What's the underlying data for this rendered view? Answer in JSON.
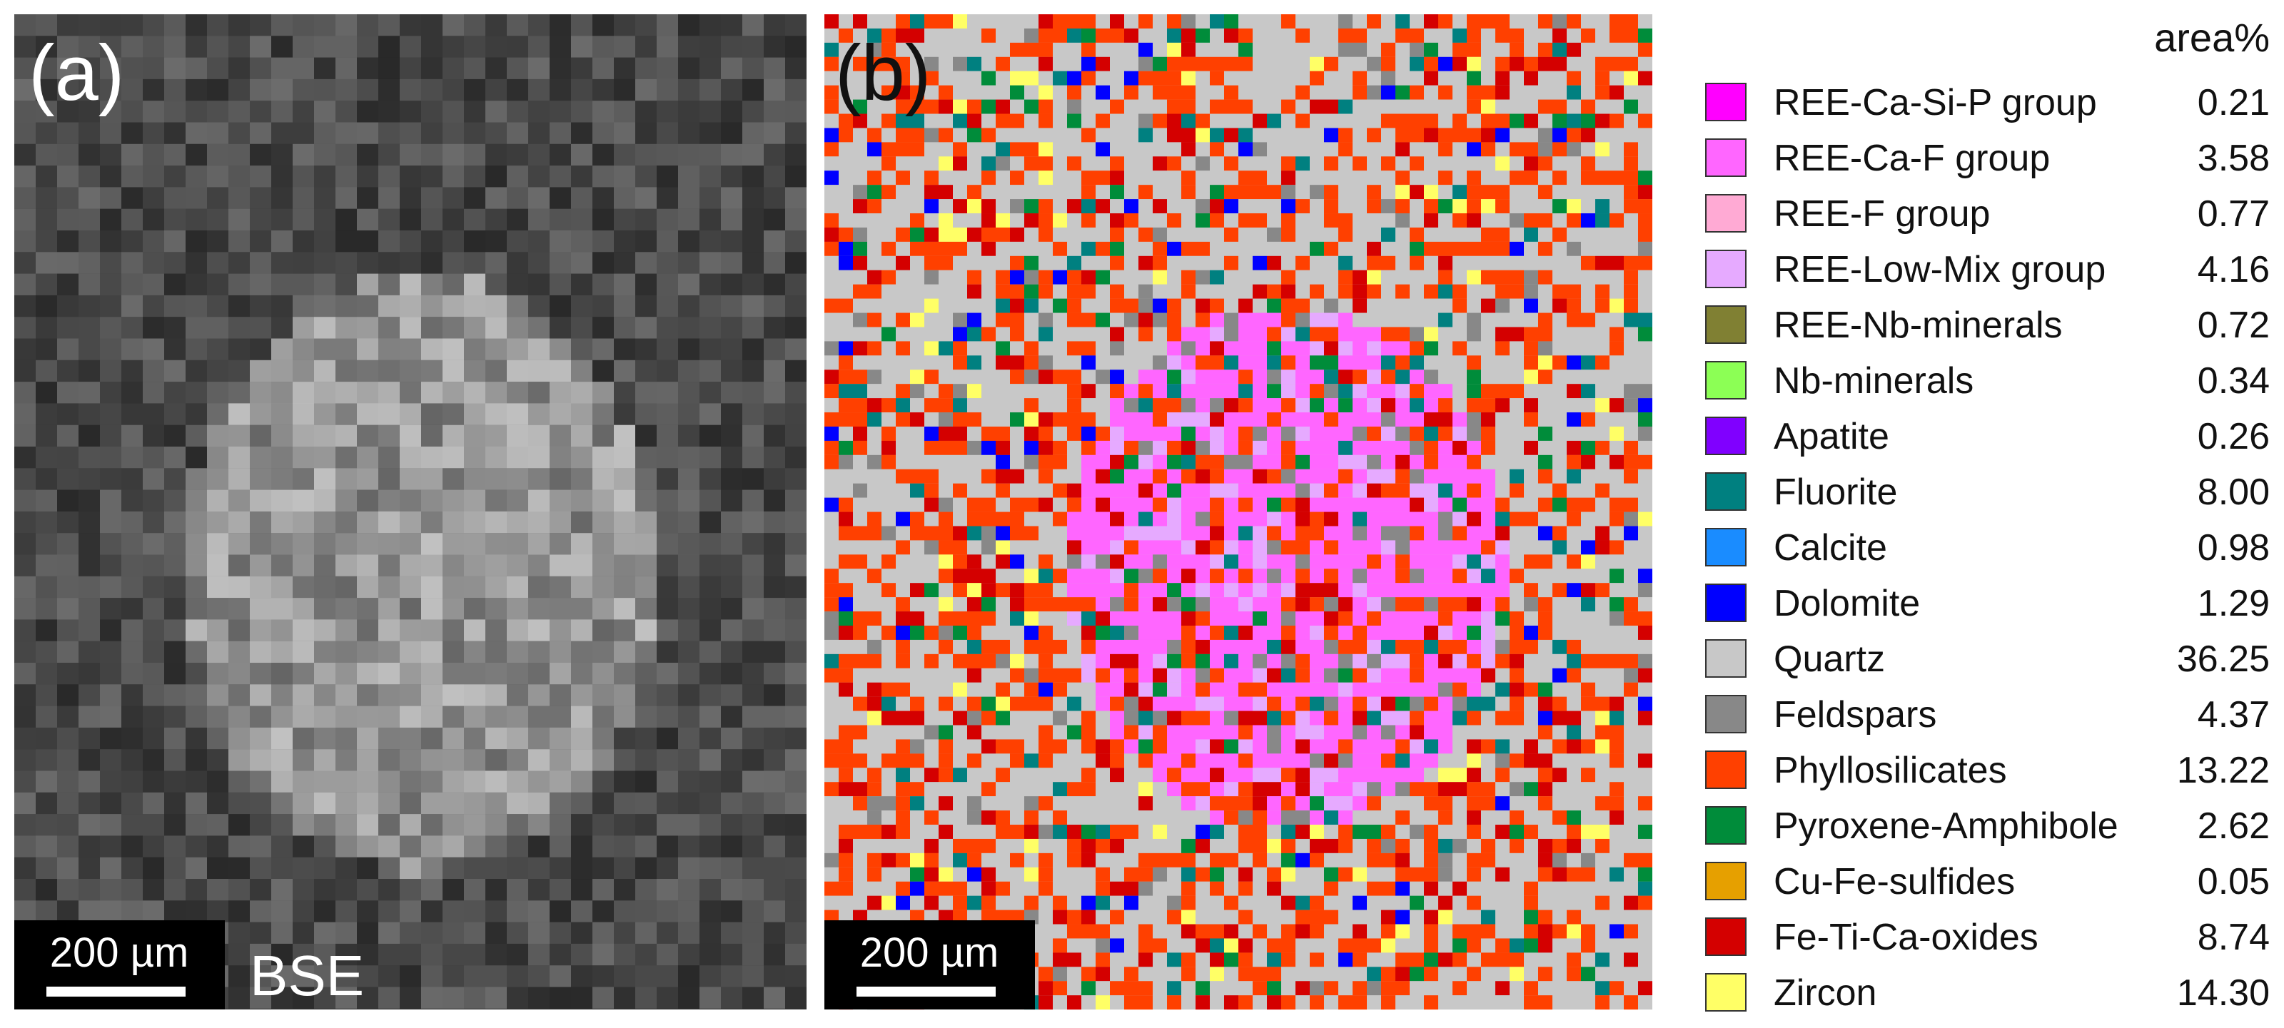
{
  "panels": [
    {
      "label": "(a)",
      "scale_bar": "200 µm",
      "caption": "BSE"
    },
    {
      "label": "(b)",
      "scale_bar": "200 µm"
    }
  ],
  "legend": {
    "header": "area%",
    "rows": [
      {
        "name": "REE-Ca-Si-P group",
        "value": "0.21",
        "color": "#ff00ff"
      },
      {
        "name": "REE-Ca-F group",
        "value": "3.58",
        "color": "#ff66ff"
      },
      {
        "name": "REE-F group",
        "value": "0.77",
        "color": "#ffaad4"
      },
      {
        "name": "REE-Low-Mix group",
        "value": "4.16",
        "color": "#e6aaff"
      },
      {
        "name": "REE-Nb-minerals",
        "value": "0.72",
        "color": "#808033"
      },
      {
        "name": "Nb-minerals",
        "value": "0.34",
        "color": "#8cff55"
      },
      {
        "name": "Apatite",
        "value": "0.26",
        "color": "#8000ff"
      },
      {
        "name": "Fluorite",
        "value": "8.00",
        "color": "#008080"
      },
      {
        "name": "Calcite",
        "value": "0.98",
        "color": "#1a8cff"
      },
      {
        "name": "Dolomite",
        "value": "1.29",
        "color": "#0000ff"
      },
      {
        "name": "Quartz",
        "value": "36.25",
        "color": "#c8c8c8"
      },
      {
        "name": "Feldspars",
        "value": "4.37",
        "color": "#888888"
      },
      {
        "name": "Phyllosilicates",
        "value": "13.22",
        "color": "#ff4000"
      },
      {
        "name": "Pyroxene-Amphibole",
        "value": "2.62",
        "color": "#008c3a"
      },
      {
        "name": "Cu-Fe-sulfides",
        "value": "0.05",
        "color": "#e6a000"
      },
      {
        "name": "Fe-Ti-Ca-oxides",
        "value": "8.74",
        "color": "#d40000"
      },
      {
        "name": "Zircon",
        "value": "14.30",
        "color": "#ffff66"
      }
    ]
  }
}
